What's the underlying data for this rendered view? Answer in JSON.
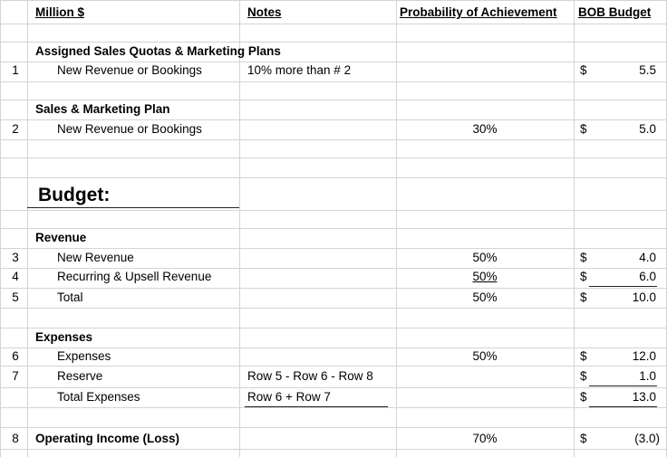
{
  "headers": {
    "col_label": "Million $",
    "col_notes": "Notes",
    "col_prob": "Probability of Achievement",
    "col_budget": "BOB Budget"
  },
  "currency_symbol": "$",
  "section1": {
    "title": "Assigned Sales Quotas & Marketing Plans",
    "row_num": "1",
    "label": "New Revenue or Bookings",
    "note": "10% more than # 2",
    "value": "5.5"
  },
  "section2": {
    "title": "Sales & Marketing Plan",
    "row_num": "2",
    "label": "New Revenue or Bookings",
    "prob": "30%",
    "value": "5.0"
  },
  "budget_heading": "Budget:",
  "revenue": {
    "title": "Revenue",
    "rows": [
      {
        "num": "3",
        "label": "New Revenue",
        "prob": "50%",
        "value": "4.0"
      },
      {
        "num": "4",
        "label": "Recurring & Upsell Revenue",
        "prob": "50%",
        "value": "6.0"
      },
      {
        "num": "5",
        "label": "Total",
        "prob": "50%",
        "value": "10.0"
      }
    ]
  },
  "expenses": {
    "title": "Expenses",
    "rows": [
      {
        "num": "6",
        "label": "Expenses",
        "note": "",
        "prob": "50%",
        "value": "12.0"
      },
      {
        "num": "7",
        "label": "Reserve",
        "note": "Row 5 - Row 6 - Row 8",
        "prob": "",
        "value": "1.0"
      },
      {
        "num": "",
        "label": "Total Expenses",
        "note": "Row 6 + Row 7",
        "prob": "",
        "value": "13.0"
      }
    ]
  },
  "operating": {
    "row_num": "8",
    "label": "Operating Income (Loss)",
    "prob": "70%",
    "value": "(3.0)"
  }
}
